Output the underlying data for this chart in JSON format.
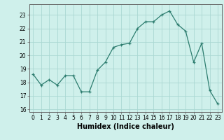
{
  "x": [
    0,
    1,
    2,
    3,
    4,
    5,
    6,
    7,
    8,
    9,
    10,
    11,
    12,
    13,
    14,
    15,
    16,
    17,
    18,
    19,
    20,
    21,
    22,
    23
  ],
  "y": [
    18.6,
    17.8,
    18.2,
    17.8,
    18.5,
    18.5,
    17.3,
    17.3,
    18.9,
    19.5,
    20.6,
    20.8,
    20.9,
    22.0,
    22.5,
    22.5,
    23.0,
    23.3,
    22.3,
    21.8,
    19.5,
    20.9,
    17.4,
    16.4
  ],
  "line_color": "#2d7d6f",
  "marker": "+",
  "marker_size": 3,
  "bg_color": "#cff0eb",
  "grid_color": "#aad8d2",
  "xlabel": "Humidex (Indice chaleur)",
  "xlim": [
    -0.5,
    23.5
  ],
  "ylim": [
    15.8,
    23.8
  ],
  "yticks": [
    16,
    17,
    18,
    19,
    20,
    21,
    22,
    23
  ],
  "xticks": [
    0,
    1,
    2,
    3,
    4,
    5,
    6,
    7,
    8,
    9,
    10,
    11,
    12,
    13,
    14,
    15,
    16,
    17,
    18,
    19,
    20,
    21,
    22,
    23
  ],
  "tick_fontsize": 5.5,
  "label_fontsize": 7.0
}
